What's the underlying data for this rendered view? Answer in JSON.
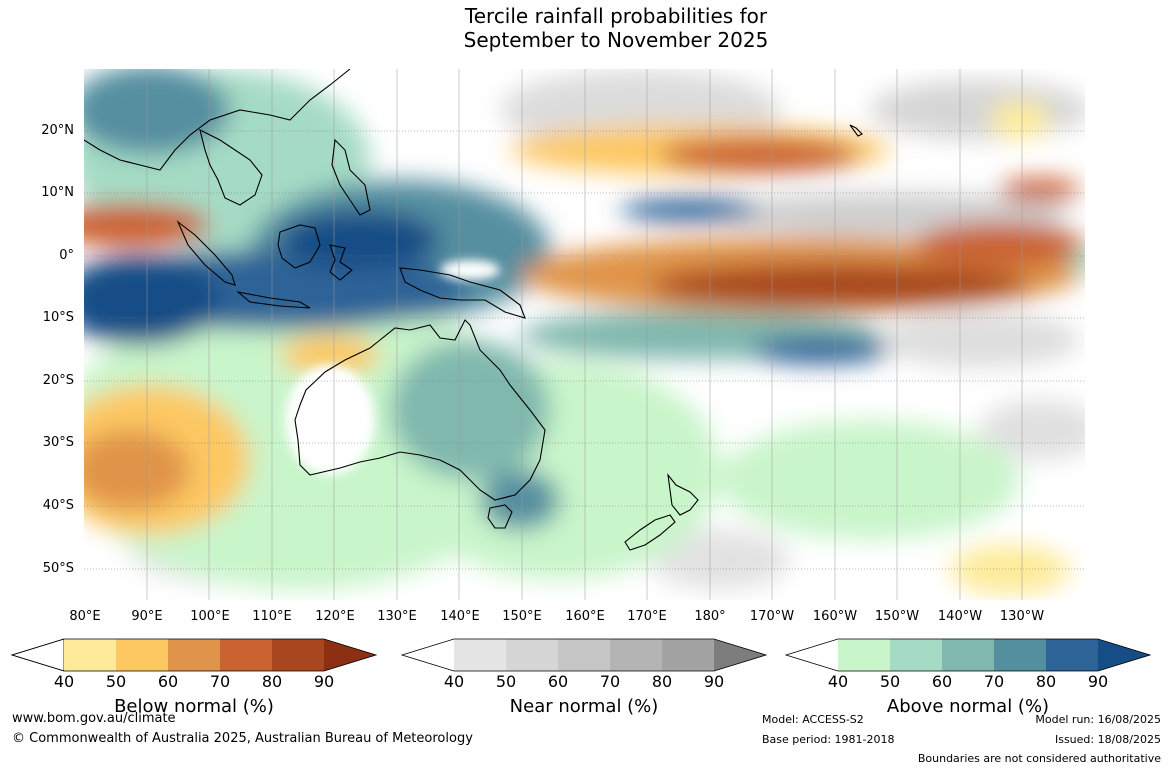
{
  "title": {
    "line1": "Tercile rainfall probabilities for",
    "line2": "September to November 2025"
  },
  "axes": {
    "lat_labels": [
      "20°N",
      "10°N",
      "0°",
      "10°S",
      "20°S",
      "30°S",
      "40°S",
      "50°S"
    ],
    "lon_labels": [
      "80°E",
      "90°E",
      "100°E",
      "110°E",
      "120°E",
      "130°E",
      "140°E",
      "150°E",
      "160°E",
      "170°E",
      "180°",
      "170°W",
      "160°W",
      "150°W",
      "140°W",
      "130°W"
    ]
  },
  "colorbars": [
    {
      "title": "Below normal (%)",
      "ticks": [
        "40",
        "50",
        "60",
        "70",
        "80",
        "90"
      ],
      "colors": [
        "#ffffff",
        "#fdeb9a",
        "#fdc862",
        "#e0944a",
        "#ca6232",
        "#a8461f",
        "#8c2f13"
      ]
    },
    {
      "title": "Near normal (%)",
      "ticks": [
        "40",
        "50",
        "60",
        "70",
        "80",
        "90"
      ],
      "colors": [
        "#ffffff",
        "#e5e5e5",
        "#d6d6d6",
        "#c6c6c6",
        "#b4b4b4",
        "#a3a3a3",
        "#7d7d7d"
      ]
    },
    {
      "title": "Above normal (%)",
      "ticks": [
        "40",
        "50",
        "60",
        "70",
        "80",
        "90"
      ],
      "colors": [
        "#ffffff",
        "#c9f5cb",
        "#a5dbc5",
        "#80b8ae",
        "#548fa0",
        "#2d6497",
        "#174d86"
      ]
    }
  ],
  "footer": {
    "website": "www.bom.gov.au/climate",
    "copyright": "© Commonwealth of Australia 2025, Australian Bureau of Meteorology",
    "model": "Model: ACCESS-S2",
    "base_period": "Base period: 1981-2018",
    "model_run": "Model run: 16/08/2025",
    "issued": "Issued: 18/08/2025",
    "disclaimer": "Boundaries are not considered authoritative"
  }
}
